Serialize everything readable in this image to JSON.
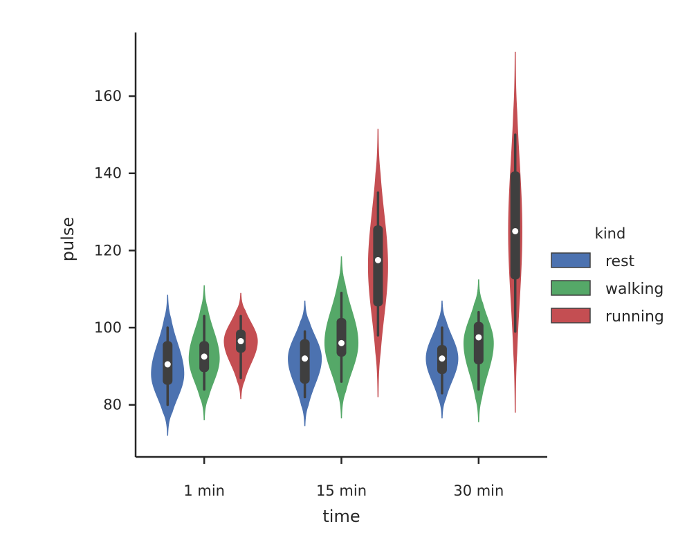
{
  "chart_data": {
    "type": "violin",
    "title": "",
    "xlabel": "time",
    "ylabel": "pulse",
    "ylim": [
      66.5,
      176.5
    ],
    "yticks": [
      80,
      100,
      120,
      140,
      160
    ],
    "categories": [
      "1 min",
      "15 min",
      "30 min"
    ],
    "grid": false,
    "legend": {
      "title": "kind",
      "position": "right"
    },
    "series": [
      {
        "name": "rest",
        "color": "#4c72b0",
        "groups": [
          {
            "min": 80,
            "q1": 85.2,
            "median": 90.5,
            "q3": 96.5,
            "max": 100,
            "kde_min": 72,
            "kde_max": 108.5,
            "peak": 88,
            "spread": 0.88
          },
          {
            "min": 82,
            "q1": 85.5,
            "median": 92,
            "q3": 97,
            "max": 99,
            "kde_min": 74.5,
            "kde_max": 107,
            "peak": 92,
            "spread": 0.9
          },
          {
            "min": 83,
            "q1": 88,
            "median": 92,
            "q3": 95.5,
            "max": 100,
            "kde_min": 76.5,
            "kde_max": 107,
            "peak": 92,
            "spread": 0.86
          }
        ]
      },
      {
        "name": "walking",
        "color": "#55a868",
        "groups": [
          {
            "min": 84,
            "q1": 88.5,
            "median": 92.5,
            "q3": 96.5,
            "max": 103,
            "kde_min": 76,
            "kde_max": 111,
            "peak": 92,
            "spread": 0.82
          },
          {
            "min": 86,
            "q1": 92.5,
            "median": 96,
            "q3": 102.5,
            "max": 109,
            "kde_min": 76.5,
            "kde_max": 118.5,
            "peak": 96,
            "spread": 0.9
          },
          {
            "min": 84,
            "q1": 90.5,
            "median": 97.5,
            "q3": 101.5,
            "max": 104,
            "kde_min": 75.5,
            "kde_max": 112.5,
            "peak": 96,
            "spread": 0.8
          }
        ]
      },
      {
        "name": "running",
        "color": "#c44e52",
        "groups": [
          {
            "min": 87,
            "q1": 93.5,
            "median": 96.5,
            "q3": 99.5,
            "max": 103,
            "kde_min": 81.5,
            "kde_max": 109,
            "peak": 96.5,
            "spread": 0.9
          },
          {
            "min": 98,
            "q1": 105.5,
            "median": 117.5,
            "q3": 126.5,
            "max": 135,
            "kde_min": 82,
            "kde_max": 151.5,
            "peak": 116,
            "spread": 0.52
          },
          {
            "min": 99,
            "q1": 112.5,
            "median": 125,
            "q3": 140.5,
            "max": 150,
            "kde_min": 78,
            "kde_max": 171.5,
            "peak": 125,
            "spread": 0.36
          }
        ]
      }
    ]
  }
}
